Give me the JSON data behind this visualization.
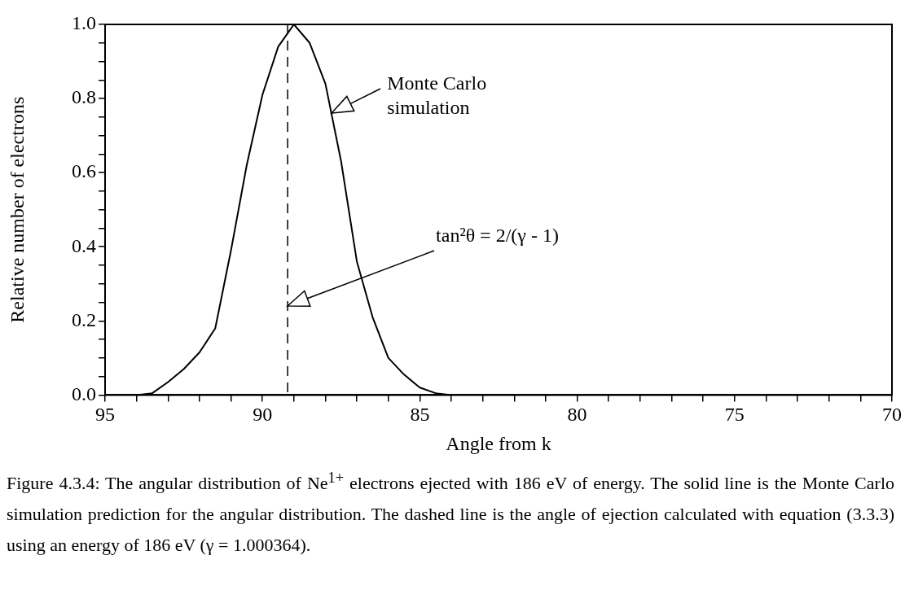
{
  "chart_data": {
    "type": "line",
    "xlabel": "Angle from k",
    "ylabel": "Relative number of electrons",
    "series": [
      {
        "color": "#000000",
        "x": [
          94.0,
          93.5,
          93.0,
          92.5,
          92.0,
          91.5,
          91.0,
          90.5,
          90.0,
          89.5,
          89.0,
          88.5,
          88.0,
          87.5,
          87.0,
          86.5,
          86.0,
          85.5,
          85.0,
          84.5,
          84.0
        ],
        "values": [
          0,
          0.005,
          0.035,
          0.07,
          0.115,
          0.18,
          0.39,
          0.62,
          0.81,
          0.94,
          1.0,
          0.95,
          0.84,
          0.63,
          0.36,
          0.21,
          0.1,
          0.055,
          0.02,
          0.005,
          0
        ]
      }
    ],
    "xlim": [
      95,
      70
    ],
    "xticks": [
      95,
      {
        "value": 94,
        "label": null
      },
      {
        "value": 93,
        "label": null
      },
      {
        "value": 92,
        "label": null
      },
      {
        "value": 91,
        "label": null
      },
      90,
      {
        "value": 89,
        "label": null
      },
      {
        "value": 88,
        "label": null
      },
      {
        "value": 87,
        "label": null
      },
      {
        "value": 86,
        "label": null
      },
      85,
      {
        "value": 84,
        "label": null
      },
      {
        "value": 83,
        "label": null
      },
      {
        "value": 82,
        "label": null
      },
      {
        "value": 81,
        "label": null
      },
      80,
      {
        "value": 79,
        "label": null
      },
      {
        "value": 78,
        "label": null
      },
      {
        "value": 77,
        "label": null
      },
      {
        "value": 76,
        "label": null
      },
      75,
      {
        "value": 74,
        "label": null
      },
      {
        "value": 73,
        "label": null
      },
      {
        "value": 72,
        "label": null
      },
      {
        "value": 71,
        "label": null
      },
      70
    ],
    "ylim": [
      0,
      1
    ],
    "yticks": [
      {
        "value": 0,
        "label": "0.0"
      },
      {
        "value": 0.05,
        "label": null
      },
      {
        "value": 0.1,
        "label": null
      },
      {
        "value": 0.15,
        "label": null
      },
      {
        "value": 0.2,
        "label": "0.2"
      },
      {
        "value": 0.25,
        "label": null
      },
      {
        "value": 0.3,
        "label": null
      },
      {
        "value": 0.35,
        "label": null
      },
      {
        "value": 0.4,
        "label": "0.4"
      },
      {
        "value": 0.45,
        "label": null
      },
      {
        "value": 0.5,
        "label": null
      },
      {
        "value": 0.55,
        "label": null
      },
      {
        "value": 0.6,
        "label": "0.6"
      },
      {
        "value": 0.65,
        "label": null
      },
      {
        "value": 0.7,
        "label": null
      },
      {
        "value": 0.75,
        "label": null
      },
      {
        "value": 0.8,
        "label": "0.8"
      },
      {
        "value": 0.85,
        "label": null
      },
      {
        "value": 0.9,
        "label": null
      },
      {
        "value": 0.95,
        "label": null
      },
      {
        "value": 1,
        "label": "1.0"
      }
    ],
    "ref_lines": [
      {
        "axis": "x",
        "value": 89.2,
        "color": "#000000",
        "line_style": "dashed"
      }
    ],
    "annotations": [
      {
        "text": "Monte Carlo simulation",
        "x": 87.8,
        "y": 0.76
      },
      "tan²θ = 2/(γ - 1)",
      "Figure 4.3.4:  The angular distribution of Ne$^{1+}$ electrons ejected with 186 eV of energy.  The solid line is the Monte Carlo simulation prediction for the angular distribution.  The dashed line is the angle of ejection calculated with equation (3.3.3) using an energy of 186 eV (γ = 1.000364)."
    ],
    "grid": false,
    "legend": false,
    "marker": "none",
    "line_style": "solid"
  }
}
